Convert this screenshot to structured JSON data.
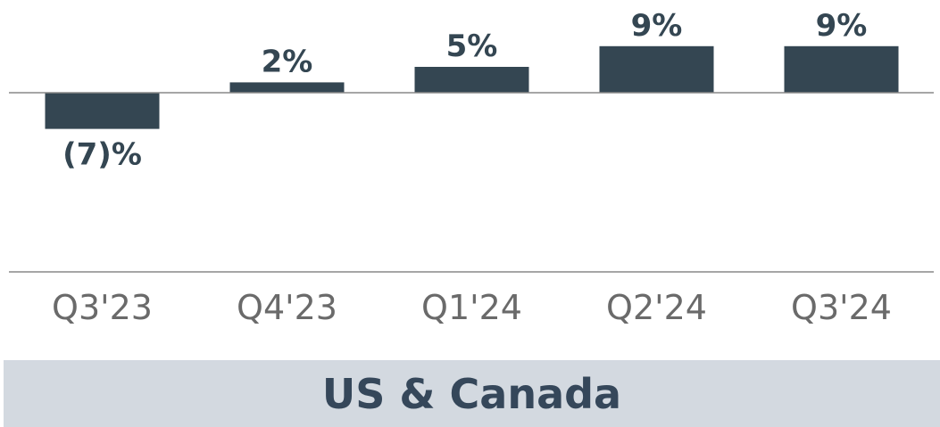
{
  "colors": {
    "bar": "#344652",
    "label": "#344652",
    "axis": "#888888",
    "tick": "#6a6a6a",
    "footer_bg": "#d3d9e0",
    "footer_text": "#35475a"
  },
  "chart_data": {
    "type": "bar",
    "title": "",
    "xlabel": "",
    "ylabel": "",
    "categories": [
      "Q3'23",
      "Q4'23",
      "Q1'24",
      "Q2'24",
      "Q3'24"
    ],
    "values": [
      -7,
      2,
      5,
      9,
      9
    ],
    "data_labels": [
      "(7)%",
      "2%",
      "5%",
      "9%",
      "9%"
    ],
    "ylim": [
      -35,
      9
    ],
    "grid": false,
    "legend": "none"
  },
  "footer": {
    "title": "US & Canada"
  }
}
